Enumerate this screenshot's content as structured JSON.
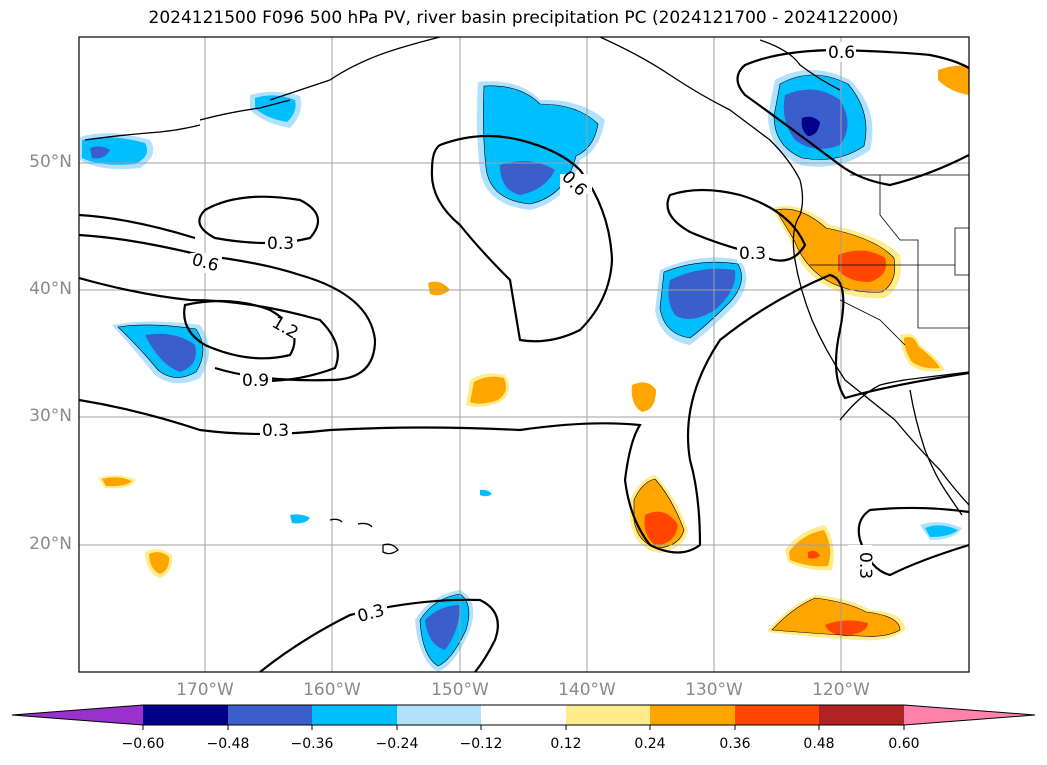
{
  "title": "2024121500 F096 500 hPa PV, river basin precipitation PC (2024121700 - 2024122000)",
  "lat_labels": [
    "50°N",
    "40°N",
    "30°N",
    "20°N"
  ],
  "lon_labels": [
    "170°W",
    "160°W",
    "150°W",
    "140°W",
    "130°W",
    "120°W"
  ],
  "contour_labels": [
    "0.6",
    "0.3",
    "0.6",
    "1.2",
    "0.9",
    "0.3",
    "0.3",
    "0.6",
    "0.3",
    "0.3"
  ],
  "colorbar": {
    "ticks": [
      "−0.60",
      "−0.48",
      "−0.36",
      "−0.24",
      "−0.12",
      "0.12",
      "0.24",
      "0.36",
      "0.48",
      "0.60"
    ],
    "colors": [
      "#9932cc",
      "#00008b",
      "#3a5fcd",
      "#00bfff",
      "#b0e2ff",
      "#ffffff",
      "#ffec8b",
      "#ffa500",
      "#ff4500",
      "#b22222",
      "#ff82ab"
    ]
  },
  "colors": {
    "neg_light": "#b0e2ff",
    "neg_mid": "#00bfff",
    "neg_dark": "#3a5fcd",
    "neg_darkest": "#00008b",
    "pos_light": "#ffec8b",
    "pos_mid": "#ffa500",
    "pos_dark": "#ff4500"
  }
}
